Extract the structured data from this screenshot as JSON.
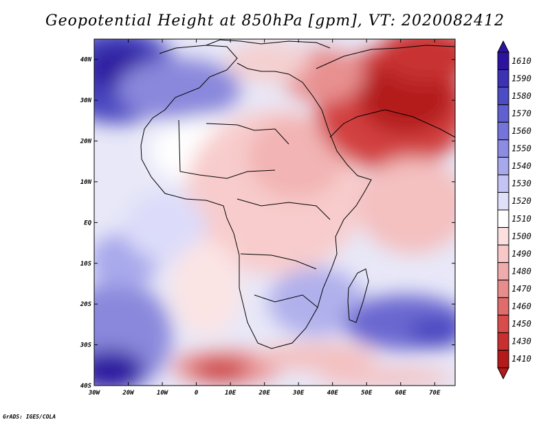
{
  "title": "Geopotential Height at 850hPa [gpm], VT: 2020082412",
  "footer": "GrADS: IGES/COLA",
  "map": {
    "lat_ticks": [
      "40N",
      "30N",
      "20N",
      "10N",
      "EQ",
      "10S",
      "20S",
      "30S",
      "40S"
    ],
    "lon_ticks": [
      "30W",
      "20W",
      "10W",
      "0",
      "10E",
      "20E",
      "30E",
      "40E",
      "50E",
      "60E",
      "70E"
    ],
    "lat_range": [
      -40,
      45
    ],
    "lon_range": [
      -30,
      76
    ]
  },
  "colorbar": {
    "labels": [
      "1610",
      "1590",
      "1580",
      "1570",
      "1560",
      "1550",
      "1540",
      "1530",
      "1520",
      "1510",
      "1500",
      "1490",
      "1480",
      "1470",
      "1460",
      "1450",
      "1430",
      "1410"
    ],
    "colors": [
      "#2d14a0",
      "#3c32b4",
      "#4c4cc4",
      "#6060d0",
      "#7474da",
      "#8c8ce2",
      "#a8a8ec",
      "#c4c4f4",
      "#e0e0fa",
      "#ffffff",
      "#fce0e0",
      "#f8c8c8",
      "#f0acac",
      "#e88c8c",
      "#e06c6c",
      "#d84c4c",
      "#c83030",
      "#b41a1a"
    ]
  }
}
